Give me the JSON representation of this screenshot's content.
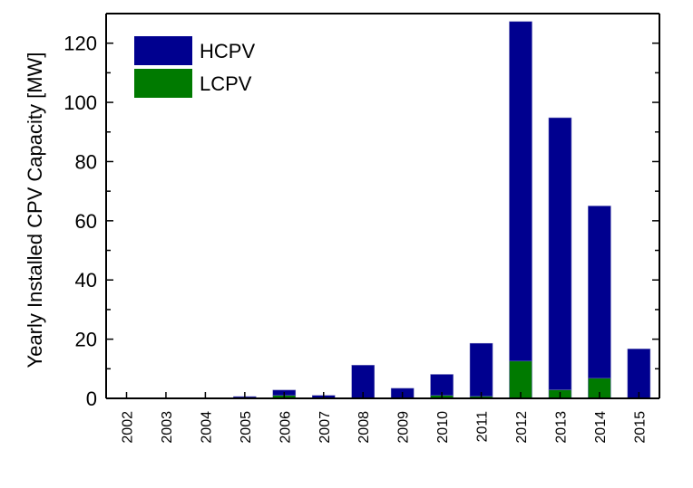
{
  "chart_data": {
    "type": "bar",
    "stacked": true,
    "title": "",
    "xlabel": "",
    "ylabel": "Yearly Installed CPV Capacity [MW]",
    "ylim": [
      0,
      130
    ],
    "yticks": [
      "0",
      "20",
      "40",
      "60",
      "80",
      "100",
      "120"
    ],
    "categories": [
      "2002",
      "2003",
      "2004",
      "2005",
      "2006",
      "2007",
      "2008",
      "2009",
      "2010",
      "2011",
      "2012",
      "2013",
      "2014",
      "2015"
    ],
    "series": [
      {
        "name": "LCPV",
        "color": "#007a00",
        "values": [
          0,
          0,
          0,
          0,
          1.0,
          0,
          0,
          0,
          1.0,
          0.7,
          12.6,
          2.9,
          6.8,
          0
        ]
      },
      {
        "name": "HCPV",
        "color": "#00008f",
        "values": [
          0.2,
          0.2,
          0,
          0.6,
          1.8,
          1.0,
          11.2,
          3.4,
          7.1,
          17.9,
          114.7,
          91.9,
          58.2,
          16.7
        ]
      }
    ],
    "legend": {
      "placement": "top-left",
      "order": [
        "HCPV",
        "LCPV"
      ]
    },
    "grid": false
  }
}
